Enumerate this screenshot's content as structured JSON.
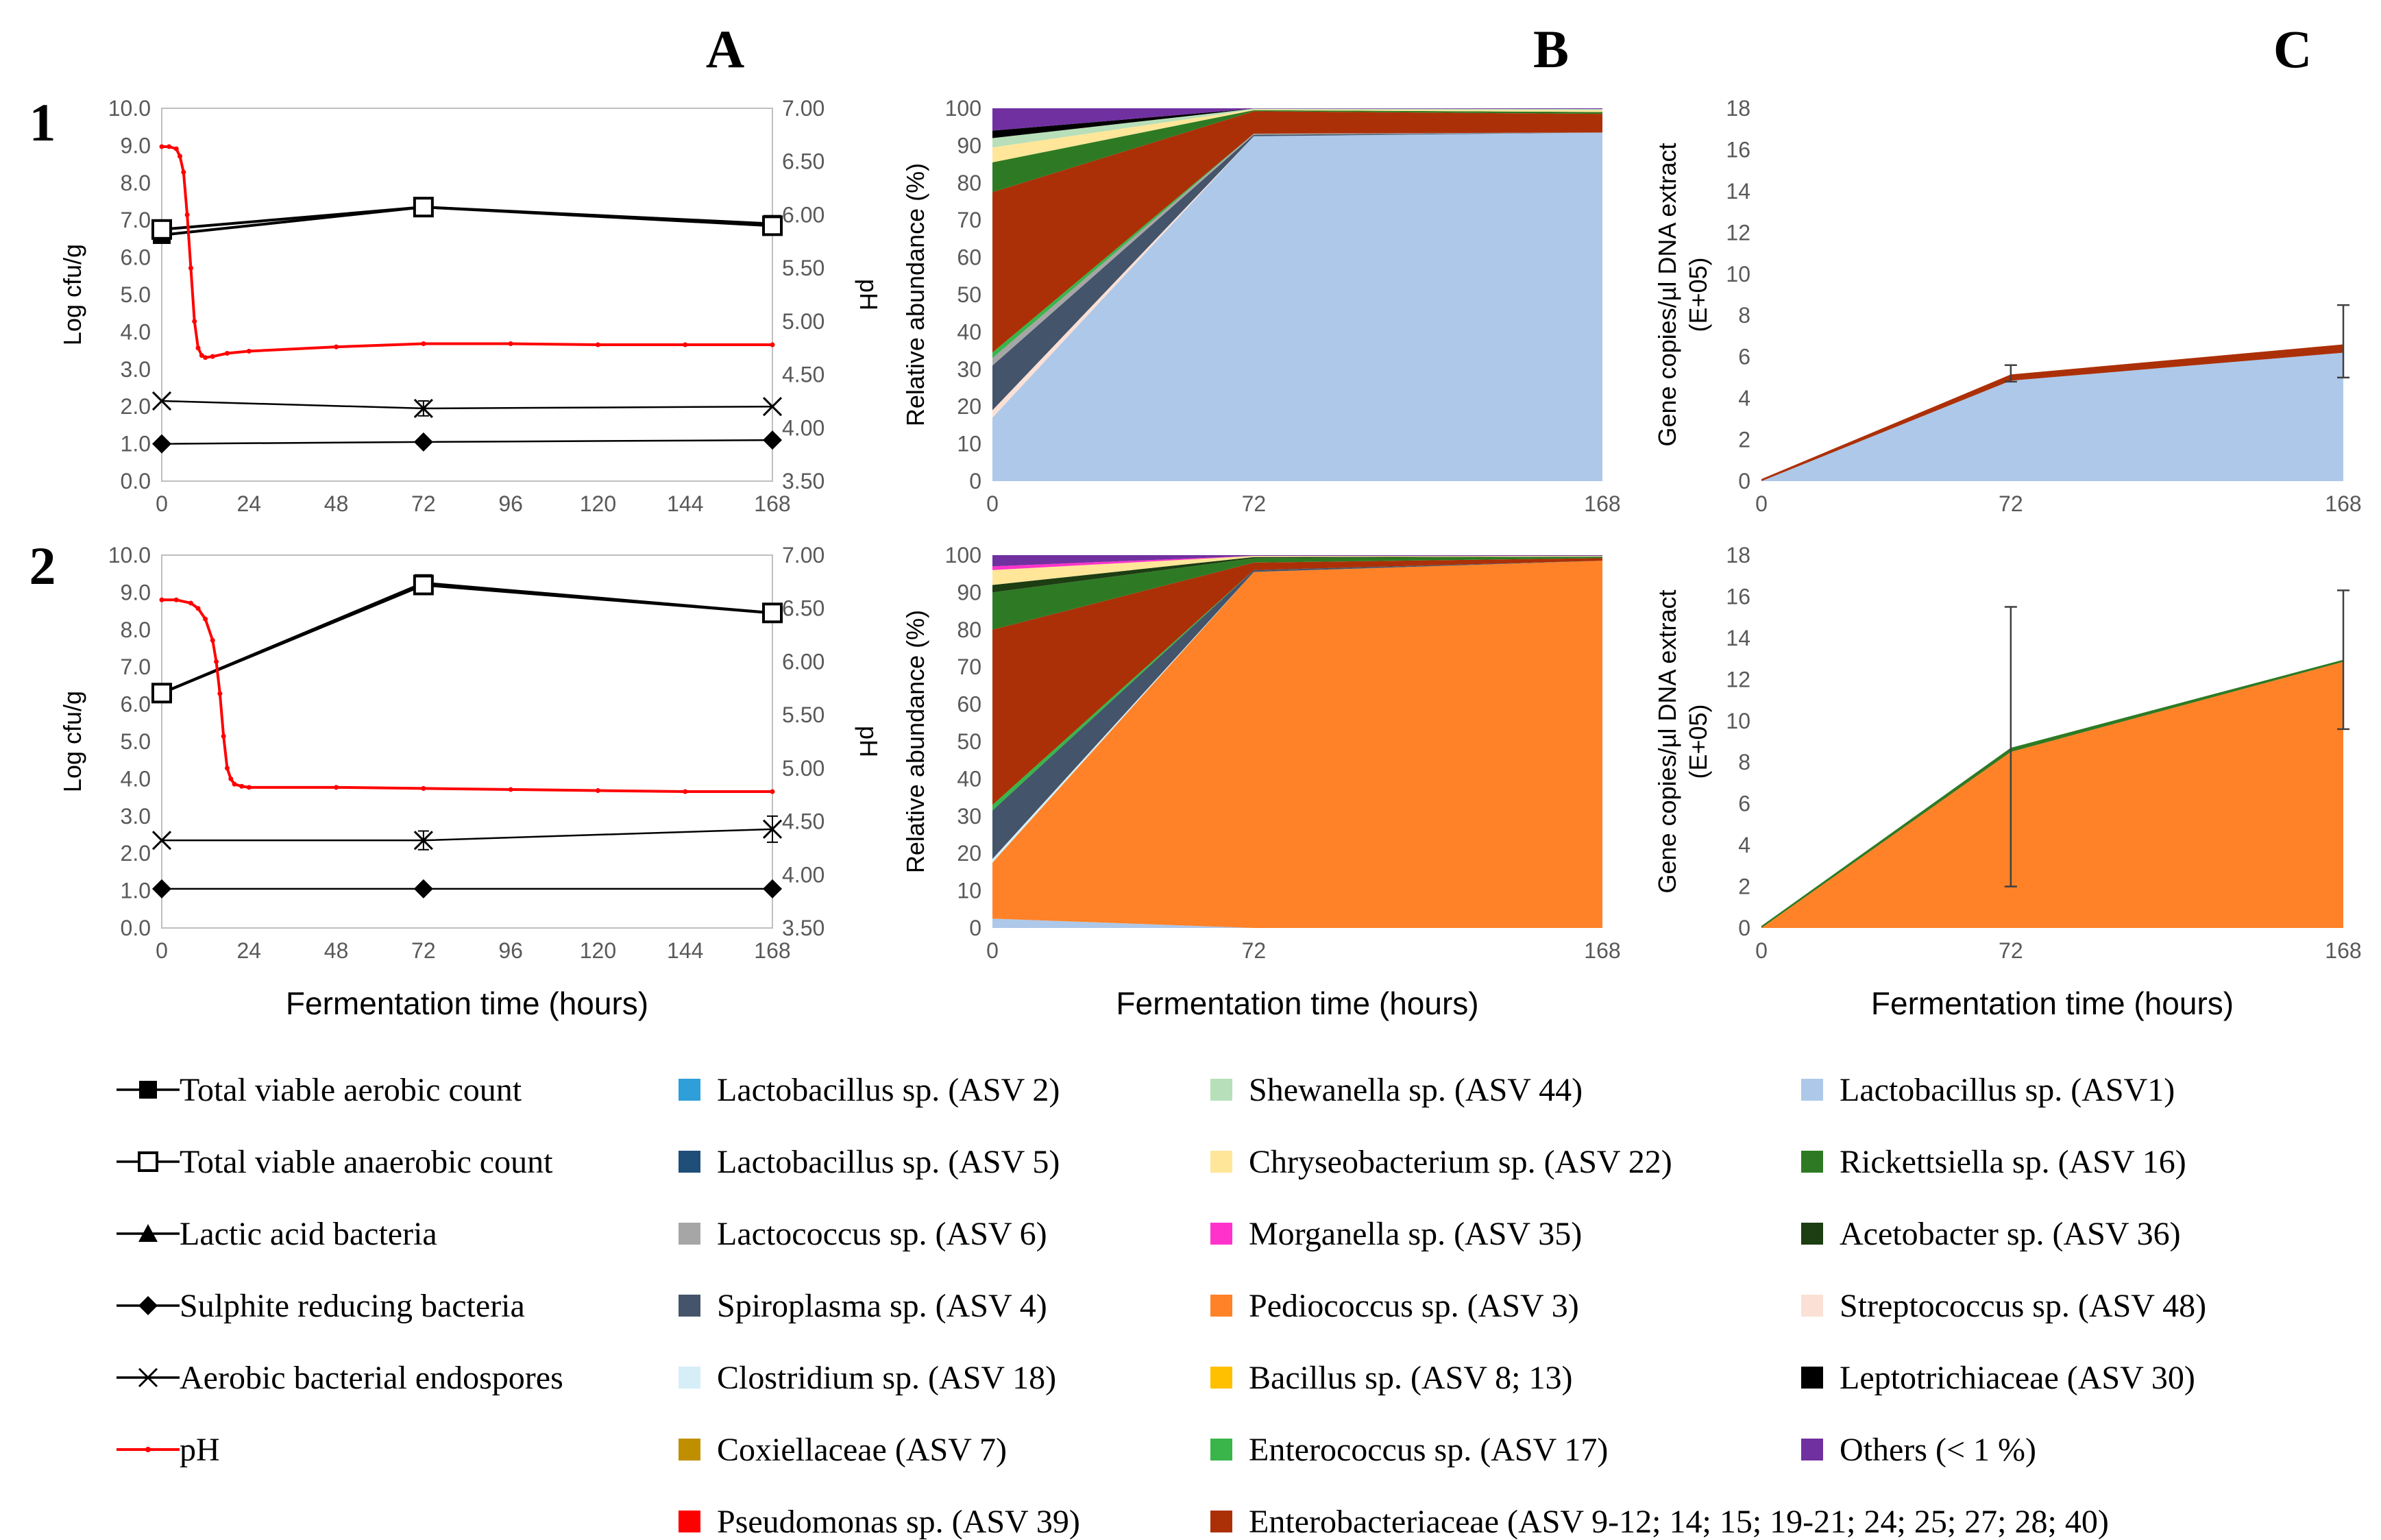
{
  "column_labels": [
    "A",
    "B",
    "C"
  ],
  "row_labels": [
    "1",
    "2"
  ],
  "colors": {
    "lacto_asv2": "#2e9fd9",
    "lacto_asv5": "#1f4e79",
    "lactococcus": "#a6a6a6",
    "spiroplasma": "#44546a",
    "clostridium": "#d6eef8",
    "coxiellaceae": "#bf8f00",
    "pseudomonas": "#ff0000",
    "shewanella": "#b7dfb9",
    "chryseobacterium": "#ffe699",
    "morganella": "#ff33cc",
    "pediococcus": "#ff8228",
    "bacillus": "#ffc000",
    "enterococcus": "#39b54a",
    "enterobacteriaceae": "#ac3007",
    "lacto_asv1": "#adc8e9",
    "rickettsiella": "#2e7a24",
    "acetobacter": "#1d3d13",
    "streptococcus": "#fbe0d6",
    "leptotrichiaceae": "#000000",
    "others": "#7030a0",
    "ph": "#ff0000"
  },
  "chart_data": [
    {
      "id": "A1",
      "type": "line",
      "xlabel": "",
      "ylabel": "Log cfu/g",
      "y2label": "pH",
      "xlim": [
        0,
        168
      ],
      "ylim": [
        0,
        10
      ],
      "y2lim": [
        3.5,
        7.0
      ],
      "x_ticks": [
        "0",
        "24",
        "48",
        "72",
        "96",
        "120",
        "144",
        "168"
      ],
      "y_ticks": [
        "0.0",
        "1.0",
        "2.0",
        "3.0",
        "4.0",
        "5.0",
        "6.0",
        "7.0",
        "8.0",
        "9.0",
        "10.0"
      ],
      "y2_ticks": [
        "3.50",
        "4.00",
        "4.50",
        "5.00",
        "5.50",
        "6.00",
        "6.50",
        "7.00"
      ],
      "series": [
        {
          "name": "Total viable aerobic count",
          "x": [
            0,
            72,
            168
          ],
          "values": [
            6.6,
            7.35,
            6.9
          ]
        },
        {
          "name": "Total viable anaerobic count",
          "x": [
            0,
            72,
            168
          ],
          "values": [
            6.75,
            7.35,
            6.85
          ]
        },
        {
          "name": "Sulphite reducing bacteria",
          "x": [
            0,
            72,
            168
          ],
          "values": [
            1.0,
            1.05,
            1.1
          ]
        },
        {
          "name": "Aerobic bacterial endospores",
          "x": [
            0,
            72,
            168
          ],
          "values": [
            2.15,
            1.95,
            2.0
          ],
          "err": [
            0,
            0.2,
            0
          ]
        }
      ],
      "ph": {
        "x": [
          0,
          2,
          4,
          5,
          6,
          7,
          8,
          9,
          10,
          11,
          12,
          14,
          18,
          24,
          48,
          72,
          96,
          120,
          144,
          168
        ],
        "values": [
          6.64,
          6.64,
          6.62,
          6.55,
          6.4,
          6.0,
          5.5,
          5.0,
          4.75,
          4.68,
          4.66,
          4.67,
          4.7,
          4.72,
          4.76,
          4.79,
          4.79,
          4.78,
          4.78,
          4.78
        ]
      }
    },
    {
      "id": "A2",
      "type": "line",
      "xlabel": "Fermentation time (hours)",
      "ylabel": "Log cfu/g",
      "y2label": "pH",
      "xlim": [
        0,
        168
      ],
      "ylim": [
        0,
        10
      ],
      "y2lim": [
        3.5,
        7.0
      ],
      "x_ticks": [
        "0",
        "24",
        "48",
        "72",
        "96",
        "120",
        "144",
        "168"
      ],
      "y_ticks": [
        "0.0",
        "1.0",
        "2.0",
        "3.0",
        "4.0",
        "5.0",
        "6.0",
        "7.0",
        "8.0",
        "9.0",
        "10.0"
      ],
      "y2_ticks": [
        "3.50",
        "4.00",
        "4.50",
        "5.00",
        "5.50",
        "6.00",
        "6.50",
        "7.00"
      ],
      "series": [
        {
          "name": "Total viable aerobic count",
          "x": [
            0,
            72,
            168
          ],
          "values": [
            6.3,
            9.25,
            8.45
          ]
        },
        {
          "name": "Total viable anaerobic count",
          "x": [
            0,
            72,
            168
          ],
          "values": [
            6.3,
            9.2,
            8.45
          ]
        },
        {
          "name": "Sulphite reducing bacteria",
          "x": [
            0,
            72,
            168
          ],
          "values": [
            1.05,
            1.05,
            1.05
          ]
        },
        {
          "name": "Aerobic bacterial endospores",
          "x": [
            0,
            72,
            168
          ],
          "values": [
            2.35,
            2.35,
            2.65
          ],
          "err": [
            0,
            0.25,
            0.35
          ]
        }
      ],
      "ph": {
        "x": [
          0,
          4,
          8,
          10,
          12,
          14,
          15,
          16,
          17,
          18,
          19,
          20,
          22,
          24,
          48,
          72,
          96,
          120,
          144,
          168
        ],
        "values": [
          6.58,
          6.58,
          6.55,
          6.5,
          6.4,
          6.2,
          6.0,
          5.7,
          5.3,
          5.0,
          4.9,
          4.85,
          4.83,
          4.82,
          4.82,
          4.81,
          4.8,
          4.79,
          4.78,
          4.78
        ]
      }
    },
    {
      "id": "B1",
      "type": "area",
      "xlabel": "",
      "ylabel": "Relative abundance (%)",
      "x": [
        0,
        72,
        168
      ],
      "x_ticks": [
        "0",
        "72",
        "168"
      ],
      "ylim": [
        0,
        100
      ],
      "y_ticks": [
        "0",
        "10",
        "20",
        "30",
        "40",
        "50",
        "60",
        "70",
        "80",
        "90",
        "100"
      ],
      "series": [
        {
          "name": "Lactobacillus sp. (ASV1)",
          "color_key": "lacto_asv1",
          "values": [
            17,
            92.5,
            93.5
          ]
        },
        {
          "name": "Streptococcus sp. (ASV 48)",
          "color_key": "streptococcus",
          "values": [
            2,
            0,
            0
          ]
        },
        {
          "name": "Spiroplasma sp. (ASV 4)",
          "color_key": "spiroplasma",
          "values": [
            12,
            0.4,
            0
          ]
        },
        {
          "name": "Lactococcus sp. (ASV 6)",
          "color_key": "lactococcus",
          "values": [
            2,
            0.3,
            0
          ]
        },
        {
          "name": "Enterococcus sp. (ASV 17)",
          "color_key": "enterococcus",
          "values": [
            1.5,
            0,
            0
          ]
        },
        {
          "name": "Enterobacteriaceae (ASV 9-12; 14; 15; 19-21; 24; 25; 27; 28; 40)",
          "color_key": "enterobacteriaceae",
          "values": [
            43,
            6,
            5
          ]
        },
        {
          "name": "Rickettsiella sp. (ASV 16)",
          "color_key": "rickettsiella",
          "values": [
            8,
            0.3,
            0.5
          ]
        },
        {
          "name": "Chryseobacterium sp. (ASV 22)",
          "color_key": "chryseobacterium",
          "values": [
            4,
            0.2,
            0.5
          ]
        },
        {
          "name": "Shewanella sp. (ASV 44)",
          "color_key": "shewanella",
          "values": [
            2.5,
            0.2,
            0.3
          ]
        },
        {
          "name": "Leptotrichiaceae (ASV 30)",
          "color_key": "leptotrichiaceae",
          "values": [
            2,
            0,
            0
          ]
        },
        {
          "name": "Others (< 1 %)",
          "color_key": "others",
          "values": [
            6,
            0.1,
            0.2
          ]
        }
      ]
    },
    {
      "id": "B2",
      "type": "area",
      "xlabel": "Fermentation time (hours)",
      "ylabel": "Relative abundance (%)",
      "x": [
        0,
        72,
        168
      ],
      "x_ticks": [
        "0",
        "72",
        "168"
      ],
      "ylim": [
        0,
        100
      ],
      "y_ticks": [
        "0",
        "10",
        "20",
        "30",
        "40",
        "50",
        "60",
        "70",
        "80",
        "90",
        "100"
      ],
      "series": [
        {
          "name": "Lactobacillus sp. (ASV1)",
          "color_key": "lacto_asv1",
          "values": [
            2.5,
            0,
            0
          ]
        },
        {
          "name": "Pediococcus sp. (ASV 3)",
          "color_key": "pediococcus",
          "values": [
            15,
            95.5,
            98.5
          ]
        },
        {
          "name": "Clostridium sp. (ASV 18)",
          "color_key": "clostridium",
          "values": [
            1,
            0,
            0
          ]
        },
        {
          "name": "Spiroplasma sp. (ASV 4)",
          "color_key": "spiroplasma",
          "values": [
            13,
            0.5,
            0
          ]
        },
        {
          "name": "Enterococcus sp. (ASV 17)",
          "color_key": "enterococcus",
          "values": [
            1.5,
            0,
            0
          ]
        },
        {
          "name": "Enterobacteriaceae (ASV 9-12; 14; 15; 19-21; 24; 25; 27; 28; 40)",
          "color_key": "enterobacteriaceae",
          "values": [
            47,
            2,
            0.7
          ]
        },
        {
          "name": "Rickettsiella sp. (ASV 16)",
          "color_key": "rickettsiella",
          "values": [
            10,
            1.2,
            0.4
          ]
        },
        {
          "name": "Acetobacter sp. (ASV 36)",
          "color_key": "acetobacter",
          "values": [
            2,
            0.3,
            0
          ]
        },
        {
          "name": "Chryseobacterium sp. (ASV 22)",
          "color_key": "chryseobacterium",
          "values": [
            4,
            0.3,
            0.2
          ]
        },
        {
          "name": "Morganella sp. (ASV 35)",
          "color_key": "morganella",
          "values": [
            1,
            0,
            0
          ]
        },
        {
          "name": "Others (< 1 %)",
          "color_key": "others",
          "values": [
            3,
            0.2,
            0.2
          ]
        }
      ]
    },
    {
      "id": "C1",
      "type": "area",
      "xlabel": "",
      "ylabel": "Gene copies/µl DNA extract",
      "ylabel2": "(E+05)",
      "x": [
        0,
        72,
        168
      ],
      "x_ticks": [
        "0",
        "72",
        "168"
      ],
      "ylim": [
        0,
        18
      ],
      "y_ticks": [
        "0",
        "2",
        "4",
        "6",
        "8",
        "10",
        "12",
        "14",
        "16",
        "18"
      ],
      "series": [
        {
          "name": "Lactobacillus sp. (ASV1)",
          "color_key": "lacto_asv1",
          "values": [
            0,
            4.85,
            6.2
          ]
        },
        {
          "name": "Enterobacteriaceae (ASV 9-12; 14; 15; 19-21; 24; 25; 27; 28; 40)",
          "color_key": "enterobacteriaceae",
          "values": [
            0.1,
            0.3,
            0.4
          ]
        }
      ],
      "errors": [
        {
          "x": 72,
          "low": 4.8,
          "high": 5.6
        },
        {
          "x": 168,
          "low": 5.0,
          "high": 8.5
        }
      ]
    },
    {
      "id": "C2",
      "type": "area",
      "xlabel": "Fermentation time (hours)",
      "ylabel": "Gene copies/µl DNA extract",
      "ylabel2": "(E+05)",
      "x": [
        0,
        72,
        168
      ],
      "x_ticks": [
        "0",
        "72",
        "168"
      ],
      "ylim": [
        0,
        18
      ],
      "y_ticks": [
        "0",
        "2",
        "4",
        "6",
        "8",
        "10",
        "12",
        "14",
        "16",
        "18"
      ],
      "series": [
        {
          "name": "Pediococcus sp. (ASV 3)",
          "color_key": "pediococcus",
          "values": [
            0,
            8.5,
            12.85
          ]
        },
        {
          "name": "Rickettsiella sp. (ASV 16)",
          "color_key": "rickettsiella",
          "values": [
            0.1,
            0.2,
            0.1
          ]
        }
      ],
      "errors": [
        {
          "x": 72,
          "low": 2.0,
          "high": 15.5
        },
        {
          "x": 168,
          "low": 9.6,
          "high": 16.3
        }
      ]
    }
  ],
  "legend": {
    "markers": [
      {
        "label": "Total viable aerobic count",
        "marker": "square-filled"
      },
      {
        "label": "Total viable anaerobic count",
        "marker": "square-open"
      },
      {
        "label": "Lactic acid bacteria",
        "marker": "triangle"
      },
      {
        "label": "Sulphite reducing bacteria",
        "marker": "diamond"
      },
      {
        "label": "Aerobic bacterial endospores",
        "marker": "cross"
      },
      {
        "label": "pH",
        "marker": "ph-line"
      }
    ],
    "swatches": [
      [
        {
          "label": "Lactobacillus sp. (ASV 2)",
          "color_key": "lacto_asv2"
        },
        {
          "label": "Lactobacillus sp. (ASV 5)",
          "color_key": "lacto_asv5"
        },
        {
          "label": "Lactococcus sp. (ASV 6)",
          "color_key": "lactococcus"
        },
        {
          "label": "Spiroplasma sp. (ASV 4)",
          "color_key": "spiroplasma"
        },
        {
          "label": "Clostridium sp. (ASV 18)",
          "color_key": "clostridium"
        },
        {
          "label": "Coxiellaceae (ASV 7)",
          "color_key": "coxiellaceae"
        },
        {
          "label": "Pseudomonas sp. (ASV 39)",
          "color_key": "pseudomonas"
        }
      ],
      [
        {
          "label": "Shewanella sp. (ASV 44)",
          "color_key": "shewanella"
        },
        {
          "label": "Chryseobacterium sp. (ASV 22)",
          "color_key": "chryseobacterium"
        },
        {
          "label": "Morganella sp. (ASV 35)",
          "color_key": "morganella"
        },
        {
          "label": "Pediococcus sp. (ASV 3)",
          "color_key": "pediococcus"
        },
        {
          "label": "Bacillus sp. (ASV 8; 13)",
          "color_key": "bacillus"
        },
        {
          "label": "Enterococcus sp. (ASV 17)",
          "color_key": "enterococcus"
        },
        {
          "label": "Enterobacteriaceae (ASV 9-12; 14; 15; 19-21; 24; 25; 27; 28; 40)",
          "color_key": "enterobacteriaceae"
        }
      ],
      [
        {
          "label": "Lactobacillus sp. (ASV1)",
          "color_key": "lacto_asv1"
        },
        {
          "label": "Rickettsiella sp. (ASV 16)",
          "color_key": "rickettsiella"
        },
        {
          "label": "Acetobacter sp. (ASV 36)",
          "color_key": "acetobacter"
        },
        {
          "label": "Streptococcus sp. (ASV 48)",
          "color_key": "streptococcus"
        },
        {
          "label": "Leptotrichiaceae (ASV 30)",
          "color_key": "leptotrichiaceae"
        },
        {
          "label": "Others (< 1 %)",
          "color_key": "others"
        }
      ]
    ]
  }
}
